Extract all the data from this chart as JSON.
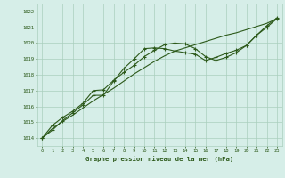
{
  "x": [
    0,
    1,
    2,
    3,
    4,
    5,
    6,
    7,
    8,
    9,
    10,
    11,
    12,
    13,
    14,
    15,
    16,
    17,
    18,
    19,
    20,
    21,
    22,
    23
  ],
  "line1": [
    1014.0,
    1014.5,
    1015.1,
    1015.6,
    1016.1,
    1016.7,
    1016.7,
    1017.6,
    1018.4,
    1019.0,
    1019.65,
    1019.7,
    1019.65,
    1019.5,
    1019.4,
    1019.3,
    1018.9,
    1019.1,
    1019.35,
    1019.55,
    1019.85,
    1020.5,
    1021.0,
    1021.55
  ],
  "line2": [
    1014.0,
    1014.8,
    1015.3,
    1015.7,
    1016.2,
    1017.0,
    1017.05,
    1017.65,
    1018.15,
    1018.6,
    1019.15,
    1019.55,
    1019.9,
    1020.0,
    1019.95,
    1019.65,
    1019.15,
    1018.9,
    1019.1,
    1019.4,
    1019.85,
    1020.5,
    1021.1,
    1021.6
  ],
  "line3": [
    1014.0,
    1014.6,
    1015.05,
    1015.45,
    1015.9,
    1016.35,
    1016.75,
    1017.15,
    1017.6,
    1018.05,
    1018.45,
    1018.85,
    1019.2,
    1019.5,
    1019.7,
    1019.9,
    1020.1,
    1020.3,
    1020.5,
    1020.65,
    1020.85,
    1021.05,
    1021.25,
    1021.55
  ],
  "line_color": "#2d5a1b",
  "bg_color": "#d6eee8",
  "grid_color": "#aacfbe",
  "xlabel": "Graphe pression niveau de la mer (hPa)",
  "ylim": [
    1013.5,
    1022.5
  ],
  "yticks": [
    1014,
    1015,
    1016,
    1017,
    1018,
    1019,
    1020,
    1021,
    1022
  ],
  "xticks": [
    0,
    1,
    2,
    3,
    4,
    5,
    6,
    7,
    8,
    9,
    10,
    11,
    12,
    13,
    14,
    15,
    16,
    17,
    18,
    19,
    20,
    21,
    22,
    23
  ],
  "figwidth": 3.2,
  "figheight": 2.0,
  "dpi": 100
}
